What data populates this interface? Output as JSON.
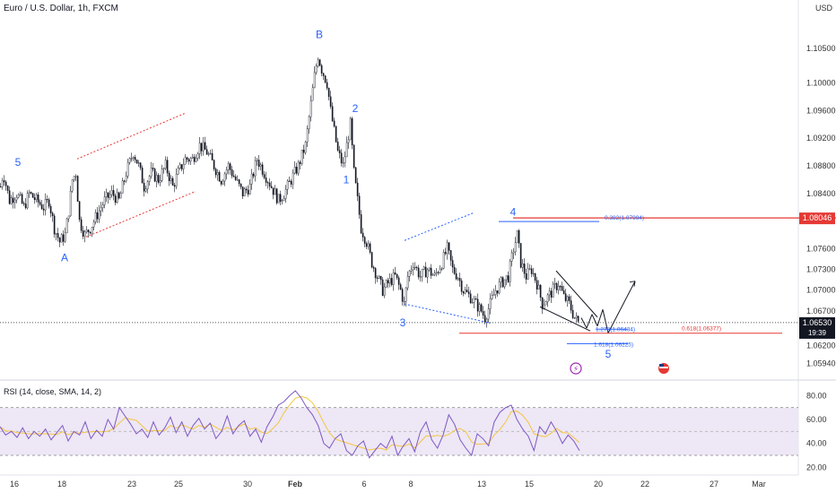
{
  "header": {
    "title": "Euro / U.S. Dollar, 1h, FXCM",
    "currency": "USD"
  },
  "rsi_header": "RSI (14, close, SMA, 14, 2)",
  "colors": {
    "candle": "#131722",
    "wave": "#2962ff",
    "red": "#e53935",
    "rsi": "#7e57c2",
    "rsi_ma": "#f5c542",
    "rsi_band": "#ede7f6"
  },
  "chart_data": [
    {
      "type": "candlestick",
      "title": "Euro / U.S. Dollar, 1h, FXCM",
      "ylim": [
        1.0575,
        1.1115
      ],
      "y_ticks": [
        "1.10500",
        "1.10000",
        "1.09600",
        "1.09200",
        "1.08800",
        "1.08400",
        "1.07600",
        "1.07300",
        "1.07000",
        "1.06700",
        "1.06200",
        "1.05940"
      ],
      "x_ticks": [
        "16",
        "18",
        "23",
        "25",
        "30",
        "Feb",
        "6",
        "8",
        "13",
        "15",
        "20",
        "22",
        "27",
        "Mar"
      ],
      "price_path": [
        [
          0,
          1.085
        ],
        [
          3,
          1.087
        ],
        [
          10,
          1.083
        ],
        [
          18,
          1.084
        ],
        [
          26,
          1.082
        ],
        [
          32,
          1.084
        ],
        [
          40,
          1.083
        ],
        [
          48,
          1.082
        ],
        [
          54,
          1.083
        ],
        [
          60,
          1.079
        ],
        [
          66,
          1.077
        ],
        [
          72,
          1.078
        ],
        [
          76,
          1.0815
        ],
        [
          80,
          1.086
        ],
        [
          84,
          1.087
        ],
        [
          88,
          1.08
        ],
        [
          94,
          1.078
        ],
        [
          100,
          1.079
        ],
        [
          108,
          1.081
        ],
        [
          116,
          1.083
        ],
        [
          124,
          1.084
        ],
        [
          132,
          1.083
        ],
        [
          140,
          1.087
        ],
        [
          148,
          1.09
        ],
        [
          154,
          1.088
        ],
        [
          160,
          1.085
        ],
        [
          168,
          1.087
        ],
        [
          176,
          1.086
        ],
        [
          184,
          1.088
        ],
        [
          192,
          1.085
        ],
        [
          198,
          1.087
        ],
        [
          206,
          1.089
        ],
        [
          214,
          1.089
        ],
        [
          222,
          1.091
        ],
        [
          230,
          1.09
        ],
        [
          238,
          1.088
        ],
        [
          246,
          1.086
        ],
        [
          254,
          1.088
        ],
        [
          262,
          1.086
        ],
        [
          270,
          1.084
        ],
        [
          278,
          1.085
        ],
        [
          286,
          1.089
        ],
        [
          294,
          1.087
        ],
        [
          302,
          1.085
        ],
        [
          310,
          1.083
        ],
        [
          316,
          1.084
        ],
        [
          324,
          1.086
        ],
        [
          332,
          1.088
        ],
        [
          340,
          1.091
        ],
        [
          346,
          1.097
        ],
        [
          350,
          1.101
        ],
        [
          354,
          1.104
        ],
        [
          358,
          1.102
        ],
        [
          364,
          1.1
        ],
        [
          368,
          1.096
        ],
        [
          372,
          1.093
        ],
        [
          376,
          1.09
        ],
        [
          382,
          1.088
        ],
        [
          386,
          1.091
        ],
        [
          390,
          1.094
        ],
        [
          394,
          1.087
        ],
        [
          398,
          1.083
        ],
        [
          402,
          1.079
        ],
        [
          408,
          1.077
        ],
        [
          414,
          1.074
        ],
        [
          420,
          1.072
        ],
        [
          426,
          1.07
        ],
        [
          432,
          1.071
        ],
        [
          440,
          1.072
        ],
        [
          446,
          1.07
        ],
        [
          450,
          1.068
        ],
        [
          454,
          1.072
        ],
        [
          460,
          1.074
        ],
        [
          468,
          1.072
        ],
        [
          476,
          1.073
        ],
        [
          484,
          1.072
        ],
        [
          492,
          1.074
        ],
        [
          498,
          1.076
        ],
        [
          504,
          1.073
        ],
        [
          510,
          1.072
        ],
        [
          516,
          1.07
        ],
        [
          524,
          1.069
        ],
        [
          530,
          1.068
        ],
        [
          536,
          1.067
        ],
        [
          540,
          1.066
        ],
        [
          546,
          1.068
        ],
        [
          552,
          1.07
        ],
        [
          558,
          1.071
        ],
        [
          566,
          1.072
        ],
        [
          572,
          1.076
        ],
        [
          576,
          1.078
        ],
        [
          580,
          1.074
        ],
        [
          586,
          1.072
        ],
        [
          592,
          1.073
        ],
        [
          598,
          1.071
        ],
        [
          604,
          1.068
        ],
        [
          610,
          1.069
        ],
        [
          616,
          1.07
        ],
        [
          622,
          1.071
        ],
        [
          628,
          1.069
        ],
        [
          634,
          1.068
        ],
        [
          640,
          1.066
        ],
        [
          646,
          1.065
        ]
      ],
      "wave_labels": [
        {
          "label": "5",
          "t": 20,
          "price": 1.088
        },
        {
          "label": "A",
          "t": 72,
          "price": 1.0742
        },
        {
          "label": "B",
          "t": 356,
          "price": 1.1065
        },
        {
          "label": "2",
          "t": 396,
          "price": 1.0958
        },
        {
          "label": "1",
          "t": 386,
          "price": 1.0855
        },
        {
          "label": "3",
          "t": 449,
          "price": 1.0648
        },
        {
          "label": "4",
          "t": 572,
          "price": 1.0808
        },
        {
          "label": "5",
          "t": 678,
          "price": 1.0602
        }
      ],
      "levels": [
        {
          "label": "0.382(1.07994)",
          "price": 1.07994
        },
        {
          "label": "0.618(1.06377)",
          "price": 1.06377
        },
        {
          "label": "1.272(1.06434)",
          "price": 1.06434
        },
        {
          "label": "1.618(1.06225)",
          "price": 1.06225
        }
      ],
      "price_tags": [
        {
          "label": "1.08046",
          "price": 1.08046
        },
        {
          "label": "1.06530",
          "price": 1.0653,
          "sub": "19:39"
        }
      ]
    },
    {
      "type": "line",
      "title": "RSI (14, close, SMA, 14, 2)",
      "ylim": [
        15,
        90
      ],
      "y_ticks": [
        "80.00",
        "60.00",
        "40.00",
        "20.00"
      ],
      "band": [
        30,
        70
      ],
      "series": [
        {
          "values": [
            54,
            47,
            50,
            45,
            53,
            44,
            50,
            46,
            52,
            43,
            49,
            55,
            42,
            50,
            47,
            58,
            44,
            51,
            46,
            60,
            52,
            70,
            63,
            56,
            48,
            52,
            45,
            58,
            47,
            53,
            62,
            49,
            58,
            46,
            55,
            61,
            52,
            57,
            44,
            50,
            63,
            48,
            55,
            59,
            46,
            52,
            41,
            54,
            62,
            72,
            75,
            80,
            84,
            78,
            70,
            64,
            55,
            40,
            36,
            44,
            48,
            34,
            30,
            38,
            42,
            28,
            34,
            40,
            36,
            46,
            30,
            38,
            44,
            33,
            50,
            58,
            43,
            36,
            47,
            64,
            56,
            43,
            36,
            30,
            48,
            44,
            38,
            58,
            66,
            70,
            72,
            60,
            52,
            46,
            34,
            54,
            48,
            58,
            50,
            40,
            47,
            42,
            34
          ]
        }
      ]
    }
  ]
}
